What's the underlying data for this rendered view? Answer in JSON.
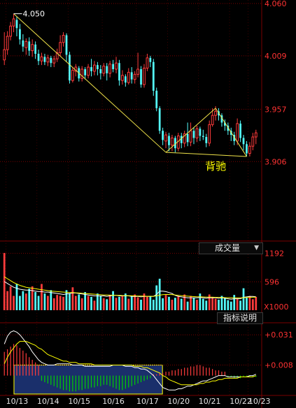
{
  "chart_data": [
    {
      "type": "candlestick",
      "panel": "price",
      "x_ticks": [
        "10/13",
        "10/14",
        "10/15",
        "10/16",
        "10/17",
        "10/20",
        "10/21",
        "10/22",
        "10/23"
      ],
      "y_ticks": [
        4.06,
        4.009,
        3.957,
        3.906
      ],
      "y_tick_labels": [
        "4.060",
        "4.009",
        "3.957",
        "3.906"
      ],
      "ylim": [
        3.83,
        4.062
      ],
      "high_annotation": "4.050",
      "text_annotation": "背驰",
      "candles": [
        [
          4.005,
          4.015,
          4.0,
          4.032
        ],
        [
          4.015,
          4.028,
          4.01,
          4.033
        ],
        [
          4.028,
          4.038,
          4.024,
          4.042
        ],
        [
          4.038,
          4.045,
          4.032,
          4.05
        ],
        [
          4.044,
          4.036,
          4.028,
          4.047
        ],
        [
          4.035,
          4.025,
          4.02,
          4.04
        ],
        [
          4.024,
          4.018,
          4.013,
          4.03
        ],
        [
          4.017,
          4.023,
          4.01,
          4.026
        ],
        [
          4.023,
          4.014,
          4.009,
          4.027
        ],
        [
          4.014,
          4.02,
          4.008,
          4.025
        ],
        [
          4.02,
          4.011,
          4.006,
          4.023
        ],
        [
          4.011,
          4.004,
          4.0,
          4.015
        ],
        [
          4.004,
          4.008,
          4.0,
          4.012
        ],
        [
          4.008,
          4.003,
          4.0,
          4.011
        ],
        [
          4.003,
          4.007,
          3.999,
          4.01
        ],
        [
          4.007,
          4.002,
          3.998,
          4.009
        ],
        [
          4.002,
          4.006,
          3.998,
          4.009
        ],
        [
          4.006,
          4.012,
          4.003,
          4.016
        ],
        [
          4.012,
          4.022,
          4.009,
          4.029
        ],
        [
          4.022,
          4.029,
          4.018,
          4.032
        ],
        [
          4.029,
          4.01,
          4.003,
          4.031
        ],
        [
          4.01,
          3.985,
          3.982,
          4.013
        ],
        [
          3.985,
          3.995,
          3.983,
          3.998
        ],
        [
          3.994,
          3.998,
          3.989,
          4.001
        ],
        [
          3.997,
          3.987,
          3.984,
          3.999
        ],
        [
          3.987,
          3.996,
          3.984,
          3.999
        ],
        [
          3.996,
          3.99,
          3.986,
          3.998
        ],
        [
          3.99,
          3.998,
          3.987,
          4.001
        ],
        [
          3.998,
          3.994,
          3.989,
          4.006
        ],
        [
          3.994,
          4.0,
          3.99,
          4.004
        ],
        [
          4.0,
          3.996,
          3.99,
          4.003
        ],
        [
          3.996,
          3.992,
          3.986,
          4.0
        ],
        [
          3.992,
          3.999,
          3.989,
          4.002
        ],
        [
          3.999,
          3.992,
          3.985,
          4.002
        ],
        [
          3.992,
          4.001,
          3.988,
          4.004
        ],
        [
          4.001,
          3.996,
          3.993,
          4.005
        ],
        [
          3.996,
          4.002,
          3.992,
          4.008
        ],
        [
          4.002,
          3.985,
          3.98,
          4.005
        ],
        [
          3.985,
          3.99,
          3.981,
          3.995
        ],
        [
          3.989,
          3.983,
          3.979,
          3.991
        ],
        [
          3.983,
          3.993,
          3.981,
          3.997
        ],
        [
          3.993,
          3.986,
          3.982,
          3.998
        ],
        [
          3.986,
          3.991,
          3.982,
          3.994
        ],
        [
          3.991,
          3.996,
          3.988,
          4.012
        ],
        [
          3.996,
          3.981,
          3.978,
          3.999
        ],
        [
          3.981,
          3.997,
          3.978,
          4.001
        ],
        [
          3.997,
          4.007,
          3.994,
          4.011
        ],
        [
          4.007,
          4.003,
          3.998,
          4.009
        ],
        [
          4.003,
          3.975,
          3.97,
          4.006
        ],
        [
          3.975,
          3.958,
          3.955,
          3.978
        ],
        [
          3.958,
          3.936,
          3.933,
          3.96
        ],
        [
          3.936,
          3.927,
          3.922,
          3.939
        ],
        [
          3.926,
          3.932,
          3.919,
          3.935
        ],
        [
          3.931,
          3.922,
          3.916,
          3.934
        ],
        [
          3.922,
          3.929,
          3.916,
          3.932
        ],
        [
          3.929,
          3.919,
          3.915,
          3.931
        ],
        [
          3.919,
          3.931,
          3.916,
          3.934
        ],
        [
          3.931,
          3.924,
          3.919,
          3.934
        ],
        [
          3.924,
          3.933,
          3.92,
          3.936
        ],
        [
          3.933,
          3.925,
          3.921,
          3.944
        ],
        [
          3.925,
          3.936,
          3.921,
          3.944
        ],
        [
          3.936,
          3.929,
          3.923,
          3.939
        ],
        [
          3.929,
          3.938,
          3.925,
          3.941
        ],
        [
          3.938,
          3.931,
          3.926,
          3.94
        ],
        [
          3.931,
          3.93,
          3.927,
          3.937
        ],
        [
          3.93,
          3.924,
          3.92,
          3.933
        ],
        [
          3.924,
          3.942,
          3.921,
          3.946
        ],
        [
          3.942,
          3.951,
          3.94,
          3.958
        ],
        [
          3.951,
          3.955,
          3.946,
          3.96
        ],
        [
          3.955,
          3.951,
          3.946,
          3.958
        ],
        [
          3.951,
          3.944,
          3.94,
          3.953
        ],
        [
          3.944,
          3.941,
          3.936,
          3.947
        ],
        [
          3.941,
          3.936,
          3.932,
          3.944
        ],
        [
          3.936,
          3.932,
          3.926,
          3.939
        ],
        [
          3.932,
          3.926,
          3.922,
          3.935
        ],
        [
          3.926,
          3.943,
          3.922,
          3.948
        ],
        [
          3.943,
          3.929,
          3.925,
          3.946
        ],
        [
          3.929,
          3.923,
          3.917,
          3.932
        ],
        [
          3.923,
          3.914,
          3.911,
          3.926
        ],
        [
          3.914,
          3.921,
          3.911,
          3.925
        ],
        [
          3.921,
          3.93,
          3.917,
          3.934
        ],
        [
          3.93,
          3.934,
          3.923,
          3.937
        ]
      ],
      "trendlines": [
        {
          "from": [
            3,
            4.05
          ],
          "to": [
            52,
            3.915
          ]
        },
        {
          "from": [
            52,
            3.915
          ],
          "to": [
            68,
            3.958
          ]
        },
        {
          "from": [
            68,
            3.958
          ],
          "to": [
            78,
            3.911
          ]
        },
        {
          "from": [
            52,
            3.915
          ],
          "to": [
            78,
            3.911
          ]
        }
      ]
    },
    {
      "type": "bar",
      "panel": "volume",
      "title": "成交量",
      "y_ticks": [
        1192,
        596
      ],
      "y_tick_labels": [
        "1192",
        "596"
      ],
      "unit_label": "X1000",
      "ylim": [
        0,
        1260
      ],
      "values": [
        1200,
        400,
        500,
        300,
        550,
        300,
        400,
        350,
        450,
        500,
        380,
        300,
        550,
        350,
        300,
        420,
        250,
        320,
        300,
        280,
        420,
        350,
        480,
        300,
        330,
        250,
        380,
        300,
        280,
        200,
        350,
        300,
        250,
        230,
        320,
        400,
        260,
        280,
        300,
        350,
        240,
        300,
        330,
        270,
        220,
        350,
        280,
        300,
        220,
        520,
        660,
        250,
        320,
        280,
        220,
        260,
        300,
        240,
        330,
        180,
        300,
        260,
        220,
        350,
        240,
        200,
        330,
        280,
        240,
        220,
        300,
        250,
        210,
        180,
        320,
        240,
        200,
        460,
        260,
        300,
        230,
        280
      ],
      "ma_short": [
        600,
        560,
        520,
        480,
        460,
        440,
        430,
        420,
        420,
        410,
        400,
        390,
        390,
        380,
        380,
        370,
        360,
        350,
        340,
        330,
        340,
        350,
        360,
        360,
        350,
        340,
        330,
        320,
        310,
        300,
        300,
        300,
        300,
        290,
        300,
        310,
        310,
        300,
        300,
        300,
        300,
        290,
        290,
        290,
        280,
        290,
        290,
        290,
        290,
        330,
        400,
        400,
        390,
        370,
        350,
        310,
        290,
        280,
        270,
        260,
        260,
        260,
        260,
        270,
        260,
        250,
        260,
        260,
        260,
        250,
        260,
        250,
        240,
        230,
        240,
        240,
        240,
        270,
        280,
        290,
        290,
        280
      ],
      "ma_long": [
        700,
        660,
        620,
        580,
        550,
        520,
        500,
        480,
        470,
        460,
        450,
        440,
        430,
        420,
        410,
        400,
        395,
        390,
        385,
        380,
        375,
        370,
        370,
        365,
        360,
        355,
        350,
        345,
        340,
        335,
        330,
        325,
        320,
        318,
        316,
        314,
        312,
        310,
        308,
        306,
        304,
        302,
        300,
        298,
        296,
        294,
        292,
        292,
        292,
        300,
        315,
        325,
        330,
        330,
        328,
        320,
        312,
        305,
        300,
        295,
        290,
        286,
        282,
        280,
        278,
        276,
        274,
        272,
        270,
        268,
        266,
        264,
        262,
        260,
        259,
        258,
        258,
        262,
        266,
        270,
        272,
        272
      ]
    },
    {
      "type": "macd",
      "panel": "indicator",
      "title": "指标说明",
      "y_ticks": [
        0.031,
        0.008
      ],
      "y_tick_labels": [
        "+0.031",
        "+0.008"
      ],
      "ylim": [
        -0.014,
        0.038
      ],
      "histogram": [
        0.018,
        0.02,
        0.022,
        0.024,
        0.023,
        0.021,
        0.019,
        0.017,
        0.014,
        0.012,
        0.01,
        0.008,
        -0.004,
        -0.005,
        -0.006,
        -0.007,
        -0.008,
        -0.009,
        -0.01,
        -0.011,
        -0.011,
        -0.012,
        -0.012,
        -0.012,
        -0.011,
        -0.011,
        -0.01,
        -0.01,
        -0.009,
        -0.009,
        -0.008,
        -0.008,
        -0.007,
        -0.007,
        -0.008,
        -0.009,
        -0.01,
        -0.011,
        -0.011,
        -0.01,
        -0.009,
        -0.008,
        -0.007,
        -0.006,
        -0.005,
        -0.004,
        -0.003,
        -0.002,
        0.001,
        0.001,
        0.002,
        0.002,
        0.003,
        0.003,
        0.004,
        0.004,
        0.005,
        0.005,
        0.006,
        0.006,
        0.007,
        0.007,
        0.008,
        0.008,
        0.007,
        0.006,
        0.006,
        0.005,
        0.004,
        0.004,
        0.003,
        0.003,
        -0.001,
        -0.001,
        -0.002,
        -0.002,
        -0.002,
        -0.001,
        -0.001,
        -0.001,
        -0.001,
        -0.001
      ],
      "dif": [
        0.024,
        0.03,
        0.033,
        0.034,
        0.033,
        0.031,
        0.028,
        0.025,
        0.022,
        0.018,
        0.015,
        0.012,
        0.01,
        0.009,
        0.008,
        0.008,
        0.008,
        0.009,
        0.009,
        0.009,
        0.009,
        0.009,
        0.008,
        0.008,
        0.008,
        0.008,
        0.007,
        0.007,
        0.007,
        0.007,
        0.007,
        0.007,
        0.007,
        0.007,
        0.007,
        0.008,
        0.008,
        0.008,
        0.008,
        0.007,
        0.007,
        0.007,
        0.006,
        0.006,
        0.005,
        0.005,
        0.004,
        0.002,
        0.0,
        -0.003,
        -0.006,
        -0.009,
        -0.01,
        -0.011,
        -0.011,
        -0.011,
        -0.01,
        -0.01,
        -0.009,
        -0.008,
        -0.008,
        -0.007,
        -0.006,
        -0.005,
        -0.004,
        -0.004,
        -0.003,
        -0.002,
        -0.001,
        0.0,
        0.0,
        0.0,
        -0.001,
        -0.001,
        -0.001,
        -0.001,
        -0.001,
        -0.001,
        -0.001,
        0.0,
        0.0,
        0.001
      ],
      "dea": [
        0.009,
        0.014,
        0.018,
        0.021,
        0.024,
        0.026,
        0.026,
        0.026,
        0.025,
        0.024,
        0.023,
        0.021,
        0.02,
        0.018,
        0.016,
        0.015,
        0.014,
        0.013,
        0.012,
        0.011,
        0.011,
        0.01,
        0.01,
        0.01,
        0.009,
        0.009,
        0.009,
        0.009,
        0.009,
        0.008,
        0.008,
        0.008,
        0.008,
        0.008,
        0.008,
        0.008,
        0.008,
        0.008,
        0.008,
        0.008,
        0.008,
        0.008,
        0.007,
        0.007,
        0.007,
        0.006,
        0.006,
        0.005,
        0.004,
        0.003,
        0.002,
        0.0,
        -0.001,
        -0.003,
        -0.004,
        -0.005,
        -0.006,
        -0.007,
        -0.007,
        -0.007,
        -0.007,
        -0.007,
        -0.007,
        -0.006,
        -0.006,
        -0.005,
        -0.005,
        -0.004,
        -0.004,
        -0.003,
        -0.003,
        -0.002,
        -0.002,
        -0.002,
        -0.002,
        -0.002,
        -0.001,
        -0.001,
        -0.001,
        -0.001,
        -0.001,
        0.0
      ],
      "highlight_box": {
        "from_index": 4,
        "to_index": 50,
        "y_from": -0.014,
        "y_to": 0.008
      }
    }
  ],
  "colors": {
    "up": "#ff3b3b",
    "down": "#54fcfc",
    "grid": "#7a0000",
    "axis_text": "#ff3232",
    "white": "#ffffff",
    "yellow": "#ffff00",
    "trend": "#f0e34a",
    "green": "#00d000",
    "highlight_fill": "#1a2f6b"
  },
  "ui": {
    "volume_dropdown": "成交量",
    "volume_dropdown_arrow": "▼",
    "indicator_button": "指标说明"
  }
}
